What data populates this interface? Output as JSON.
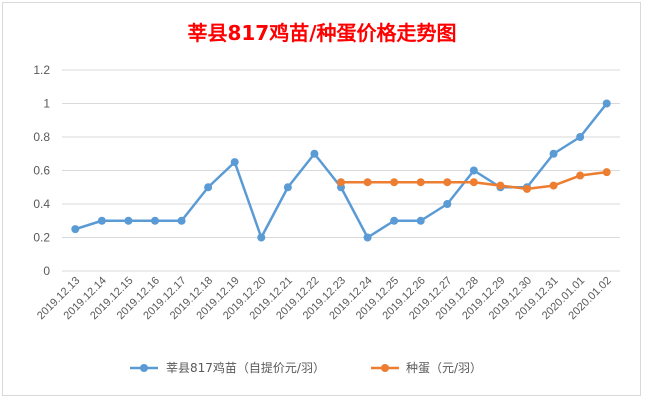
{
  "chart_data": {
    "type": "line",
    "title": "莘县817鸡苗/种蛋价格走势图",
    "categories": [
      "2019.12.13",
      "2019.12.14",
      "2019.12.15",
      "2019.12.16",
      "2019.12.17",
      "2019.12.18",
      "2019.12.19",
      "2019.12.20",
      "2019.12.21",
      "2019.12.22",
      "2019.12.23",
      "2019.12.24",
      "2019.12.25",
      "2019.12.26",
      "2019.12.27",
      "2019.12.28",
      "2019.12.29",
      "2019.12.30",
      "2019.12.31",
      "2020.01.01",
      "2020.01.02"
    ],
    "yticks": [
      "0",
      "0.2",
      "0.4",
      "0.6",
      "0.8",
      "1",
      "1.2"
    ],
    "ylim": [
      0,
      1.2
    ],
    "grid": true,
    "legend_position": "bottom",
    "series": [
      {
        "name": "莘县817鸡苗（自提价元/羽）",
        "color": "#5b9bd5",
        "values": [
          0.25,
          0.3,
          0.3,
          0.3,
          0.3,
          0.5,
          0.65,
          0.2,
          0.5,
          0.7,
          0.5,
          0.2,
          0.3,
          0.3,
          0.4,
          0.6,
          0.5,
          0.5,
          0.7,
          0.8,
          1.0
        ]
      },
      {
        "name": "种蛋（元/羽）",
        "color": "#ed7d31",
        "values": [
          null,
          null,
          null,
          null,
          null,
          null,
          null,
          null,
          null,
          null,
          0.53,
          0.53,
          0.53,
          0.53,
          0.53,
          0.53,
          0.51,
          0.49,
          0.51,
          0.57,
          0.59
        ]
      }
    ]
  }
}
